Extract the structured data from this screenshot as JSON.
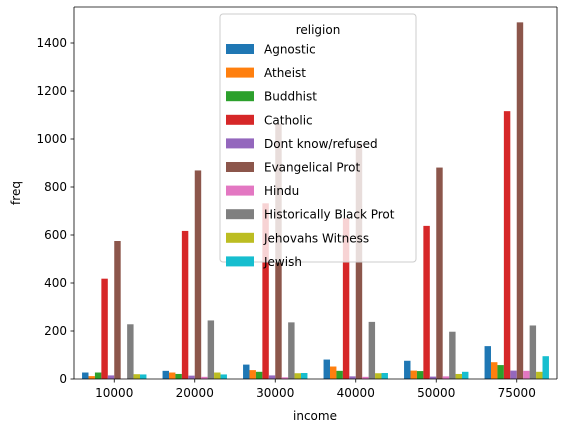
{
  "chart_data": {
    "type": "bar",
    "xlabel": "income",
    "ylabel": "freq",
    "ylim": [
      0,
      1550
    ],
    "yticks": [
      0,
      200,
      400,
      600,
      800,
      1000,
      1200,
      1400
    ],
    "categories": [
      "10000",
      "20000",
      "30000",
      "40000",
      "50000",
      "75000"
    ],
    "legend": {
      "title": "religion",
      "placement": "top-center"
    },
    "grid": false,
    "series": [
      {
        "name": "Agnostic",
        "color": "#1f77b4",
        "values": [
          27,
          34,
          60,
          81,
          76,
          137
        ]
      },
      {
        "name": "Atheist",
        "color": "#ff7f0e",
        "values": [
          12,
          27,
          37,
          52,
          35,
          70
        ]
      },
      {
        "name": "Buddhist",
        "color": "#2ca02c",
        "values": [
          27,
          21,
          30,
          34,
          33,
          58
        ]
      },
      {
        "name": "Catholic",
        "color": "#d62728",
        "values": [
          418,
          617,
          732,
          670,
          638,
          1116
        ]
      },
      {
        "name": "Dont know/refused",
        "color": "#9467bd",
        "values": [
          15,
          14,
          15,
          11,
          10,
          35
        ]
      },
      {
        "name": "Evangelical Prot",
        "color": "#8c564b",
        "values": [
          575,
          869,
          1064,
          982,
          881,
          1486
        ]
      },
      {
        "name": "Hindu",
        "color": "#e377c2",
        "values": [
          1,
          9,
          7,
          9,
          11,
          34
        ]
      },
      {
        "name": "Historically Black Prot",
        "color": "#7f7f7f",
        "values": [
          228,
          244,
          236,
          238,
          197,
          223
        ]
      },
      {
        "name": "Jehovahs Witness",
        "color": "#bcbd22",
        "values": [
          20,
          27,
          24,
          24,
          21,
          30
        ]
      },
      {
        "name": "Jewish",
        "color": "#17becf",
        "values": [
          19,
          19,
          25,
          25,
          30,
          95
        ]
      }
    ]
  }
}
